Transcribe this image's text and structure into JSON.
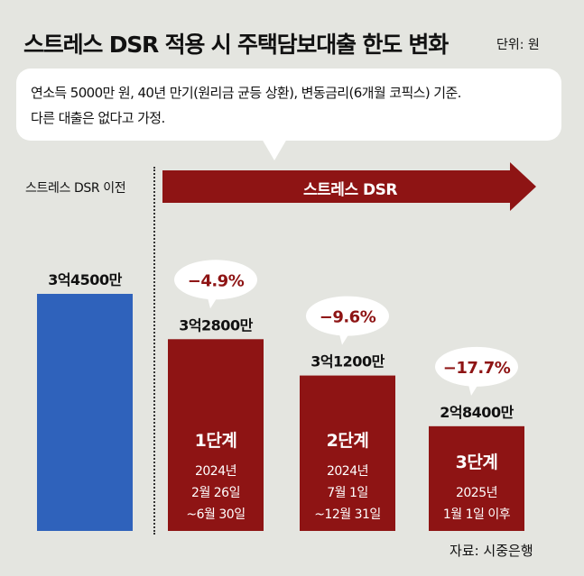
{
  "title": "스트레스 DSR 적용 시 주택담보대출 한도 변화",
  "unit": "단위: 원",
  "note": {
    "line1": "연소득 5000만 원, 40년 만기(원리금 균등 상환), 변동금리(6개월 코픽스) 기준.",
    "line2": "다른 대출은 없다고 가정."
  },
  "pre_label": "스트레스 DSR 이전",
  "arrow_label": "스트레스 DSR",
  "source": "자료: 시중은행",
  "colors": {
    "before": "#2f62bb",
    "after": "#8e1414",
    "background": "#e4e5e0"
  },
  "chart_data": {
    "type": "bar",
    "categories": [
      "스트레스 DSR 이전",
      "1단계",
      "2단계",
      "3단계"
    ],
    "values": [
      345000000,
      328000000,
      312000000,
      284000000
    ],
    "value_labels": [
      "3억4500만",
      "3억2800만",
      "3억1200만",
      "2억8400만"
    ],
    "change_labels": [
      "",
      "−4.9%",
      "−9.6%",
      "−17.7%"
    ],
    "period_labels": [
      [],
      [
        "2024년",
        "2월 26일",
        "~6월 30일"
      ],
      [
        "2024년",
        "7월 1일",
        "~12월 31일"
      ],
      [
        "2025년",
        "1월 1일 이후"
      ]
    ],
    "stage_labels": [
      "",
      "1단계",
      "2단계",
      "3단계"
    ],
    "ylim": [
      0,
      345000000
    ],
    "grid": false
  }
}
